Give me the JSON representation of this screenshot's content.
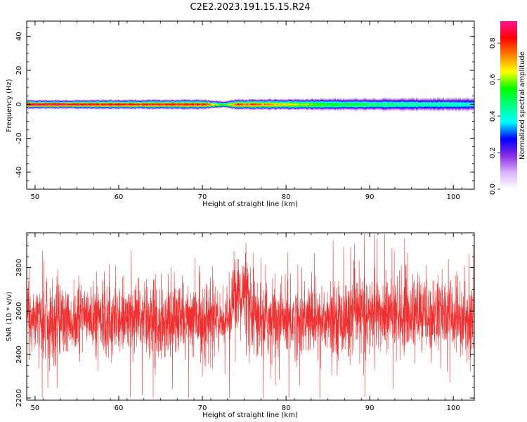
{
  "figure": {
    "title": "C2E2.2023.191.15.15.R24"
  },
  "chart_data": [
    {
      "type": "heatmap",
      "title": "",
      "xlabel": "Height of straight line (km)",
      "ylabel": "Frequency (Hz)",
      "xlim": [
        49,
        102.5
      ],
      "ylim": [
        -50,
        49
      ],
      "xticks": [
        50,
        60,
        70,
        80,
        90,
        100
      ],
      "yticks": [
        -40,
        -20,
        0,
        20,
        40
      ],
      "colorbar": {
        "label": "Normalized spectral amplitude",
        "range": [
          0,
          0.92
        ],
        "ticks": [
          "0.0",
          "0.2",
          "0.4",
          "0.6",
          "0.8"
        ],
        "colormap": [
          "#ffffff",
          "#d9b3ff",
          "#8a2be2",
          "#0000ff",
          "#00ffff",
          "#00ff80",
          "#00ff00",
          "#ffff00",
          "#ff8000",
          "#ff0000",
          "#ff1493"
        ]
      },
      "band": {
        "height_km": [
          49,
          55,
          60,
          65,
          70,
          72.5,
          74,
          76,
          80,
          85,
          90,
          95,
          100,
          102.5
        ],
        "peak_amplitude": [
          0.9,
          0.88,
          0.86,
          0.85,
          0.84,
          0.55,
          0.8,
          0.78,
          0.7,
          0.55,
          0.5,
          0.45,
          0.42,
          0.4
        ],
        "halfwidth_hz": [
          2.5,
          2.6,
          2.7,
          2.8,
          2.8,
          2.0,
          3.0,
          3.1,
          3.3,
          3.6,
          3.9,
          4.1,
          4.2,
          4.2
        ]
      }
    },
    {
      "type": "line",
      "title": "",
      "xlabel": "Height of straight line (km)",
      "ylabel": "SNR (10 * v/v)",
      "xlim": [
        49,
        102.5
      ],
      "ylim": [
        2190,
        2960
      ],
      "xticks": [
        50,
        60,
        70,
        80,
        90,
        100
      ],
      "yticks": [
        2200,
        2400,
        2600,
        2800
      ],
      "color": "#f03030",
      "trace": {
        "n_points": 3200,
        "mean": 2560,
        "spread": 85,
        "max": 2955,
        "min": 2200,
        "quiet_regions_km": [
          [
            72,
            73.5
          ]
        ],
        "elevated_regions_km": [
          [
            73.5,
            75.5
          ]
        ]
      }
    }
  ]
}
